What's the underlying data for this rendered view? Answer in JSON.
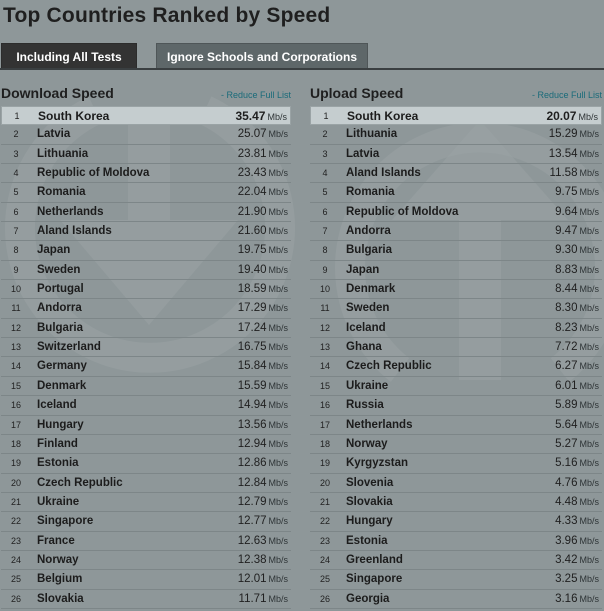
{
  "page": {
    "title": "Top Countries Ranked by Speed"
  },
  "tabs": [
    {
      "label": "Including All Tests",
      "active": true
    },
    {
      "label": "Ignore Schools and Corporations",
      "active": false
    }
  ],
  "unit": "Mb/s",
  "download": {
    "title": "Download Speed",
    "reduce_label": "- Reduce Full List",
    "rows": [
      {
        "rank": "1",
        "country": "South Korea",
        "speed": "35.47"
      },
      {
        "rank": "2",
        "country": "Latvia",
        "speed": "25.07"
      },
      {
        "rank": "3",
        "country": "Lithuania",
        "speed": "23.81"
      },
      {
        "rank": "4",
        "country": "Republic of Moldova",
        "speed": "23.43"
      },
      {
        "rank": "5",
        "country": "Romania",
        "speed": "22.04"
      },
      {
        "rank": "6",
        "country": "Netherlands",
        "speed": "21.90"
      },
      {
        "rank": "7",
        "country": "Aland Islands",
        "speed": "21.60"
      },
      {
        "rank": "8",
        "country": "Japan",
        "speed": "19.75"
      },
      {
        "rank": "9",
        "country": "Sweden",
        "speed": "19.40"
      },
      {
        "rank": "10",
        "country": "Portugal",
        "speed": "18.59"
      },
      {
        "rank": "11",
        "country": "Andorra",
        "speed": "17.29"
      },
      {
        "rank": "12",
        "country": "Bulgaria",
        "speed": "17.24"
      },
      {
        "rank": "13",
        "country": "Switzerland",
        "speed": "16.75"
      },
      {
        "rank": "14",
        "country": "Germany",
        "speed": "15.84"
      },
      {
        "rank": "15",
        "country": "Denmark",
        "speed": "15.59"
      },
      {
        "rank": "16",
        "country": "Iceland",
        "speed": "14.94"
      },
      {
        "rank": "17",
        "country": "Hungary",
        "speed": "13.56"
      },
      {
        "rank": "18",
        "country": "Finland",
        "speed": "12.94"
      },
      {
        "rank": "19",
        "country": "Estonia",
        "speed": "12.86"
      },
      {
        "rank": "20",
        "country": "Czech Republic",
        "speed": "12.84"
      },
      {
        "rank": "21",
        "country": "Ukraine",
        "speed": "12.79"
      },
      {
        "rank": "22",
        "country": "Singapore",
        "speed": "12.77"
      },
      {
        "rank": "23",
        "country": "France",
        "speed": "12.63"
      },
      {
        "rank": "24",
        "country": "Norway",
        "speed": "12.38"
      },
      {
        "rank": "25",
        "country": "Belgium",
        "speed": "12.01"
      },
      {
        "rank": "26",
        "country": "Slovakia",
        "speed": "11.71"
      }
    ]
  },
  "upload": {
    "title": "Upload Speed",
    "reduce_label": "- Reduce Full List",
    "rows": [
      {
        "rank": "1",
        "country": "South Korea",
        "speed": "20.07"
      },
      {
        "rank": "2",
        "country": "Lithuania",
        "speed": "15.29"
      },
      {
        "rank": "3",
        "country": "Latvia",
        "speed": "13.54"
      },
      {
        "rank": "4",
        "country": "Aland Islands",
        "speed": "11.58"
      },
      {
        "rank": "5",
        "country": "Romania",
        "speed": "9.75"
      },
      {
        "rank": "6",
        "country": "Republic of Moldova",
        "speed": "9.64"
      },
      {
        "rank": "7",
        "country": "Andorra",
        "speed": "9.47"
      },
      {
        "rank": "8",
        "country": "Bulgaria",
        "speed": "9.30"
      },
      {
        "rank": "9",
        "country": "Japan",
        "speed": "8.83"
      },
      {
        "rank": "10",
        "country": "Denmark",
        "speed": "8.44"
      },
      {
        "rank": "11",
        "country": "Sweden",
        "speed": "8.30"
      },
      {
        "rank": "12",
        "country": "Iceland",
        "speed": "8.23"
      },
      {
        "rank": "13",
        "country": "Ghana",
        "speed": "7.72"
      },
      {
        "rank": "14",
        "country": "Czech Republic",
        "speed": "6.27"
      },
      {
        "rank": "15",
        "country": "Ukraine",
        "speed": "6.01"
      },
      {
        "rank": "16",
        "country": "Russia",
        "speed": "5.89"
      },
      {
        "rank": "17",
        "country": "Netherlands",
        "speed": "5.64"
      },
      {
        "rank": "18",
        "country": "Norway",
        "speed": "5.27"
      },
      {
        "rank": "19",
        "country": "Kyrgyzstan",
        "speed": "5.16"
      },
      {
        "rank": "20",
        "country": "Slovenia",
        "speed": "4.76"
      },
      {
        "rank": "21",
        "country": "Slovakia",
        "speed": "4.48"
      },
      {
        "rank": "22",
        "country": "Hungary",
        "speed": "4.33"
      },
      {
        "rank": "23",
        "country": "Estonia",
        "speed": "3.96"
      },
      {
        "rank": "24",
        "country": "Greenland",
        "speed": "3.42"
      },
      {
        "rank": "25",
        "country": "Singapore",
        "speed": "3.25"
      },
      {
        "rank": "26",
        "country": "Georgia",
        "speed": "3.16"
      }
    ]
  },
  "icons": {
    "download": "download-arrow-icon",
    "upload": "upload-arrow-icon"
  }
}
